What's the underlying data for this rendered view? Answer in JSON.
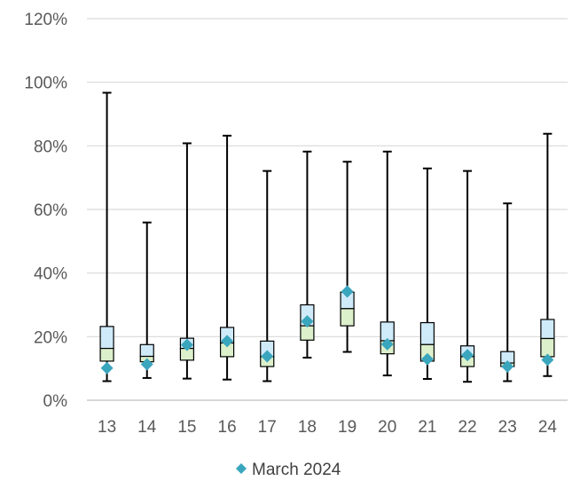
{
  "chart_data": {
    "type": "boxplot",
    "categories": [
      "13",
      "14",
      "15",
      "16",
      "17",
      "18",
      "19",
      "20",
      "21",
      "22",
      "23",
      "24"
    ],
    "ylim": [
      0,
      120
    ],
    "yticks": [
      "0%",
      "20%",
      "40%",
      "60%",
      "80%",
      "100%",
      "120%"
    ],
    "grid": true,
    "boxes": [
      {
        "min": 6.0,
        "q1": 12.3,
        "median": 16.3,
        "q3": 23.2,
        "max": 96.7
      },
      {
        "min": 7.0,
        "q1": 12.1,
        "median": 13.8,
        "q3": 17.5,
        "max": 55.9
      },
      {
        "min": 6.8,
        "q1": 12.6,
        "median": 16.3,
        "q3": 19.5,
        "max": 80.8
      },
      {
        "min": 6.5,
        "q1": 13.7,
        "median": 18.0,
        "q3": 22.9,
        "max": 83.2
      },
      {
        "min": 6.0,
        "q1": 10.6,
        "median": 13.7,
        "q3": 18.6,
        "max": 72.1
      },
      {
        "min": 13.4,
        "q1": 18.9,
        "median": 23.4,
        "q3": 30.0,
        "max": 78.2
      },
      {
        "min": 15.2,
        "q1": 23.4,
        "median": 28.8,
        "q3": 34.0,
        "max": 75.0
      },
      {
        "min": 7.8,
        "q1": 14.6,
        "median": 18.7,
        "q3": 24.6,
        "max": 78.2
      },
      {
        "min": 6.7,
        "q1": 12.3,
        "median": 17.5,
        "q3": 24.4,
        "max": 72.9
      },
      {
        "min": 5.8,
        "q1": 10.6,
        "median": 13.7,
        "q3": 17.1,
        "max": 72.1
      },
      {
        "min": 6.0,
        "q1": 10.6,
        "median": 11.7,
        "q3": 15.3,
        "max": 61.9
      },
      {
        "min": 7.6,
        "q1": 13.7,
        "median": 19.4,
        "q3": 25.4,
        "max": 83.8
      }
    ],
    "series": [
      {
        "name": "March 2024",
        "values": [
          10.1,
          11.3,
          17.4,
          18.6,
          13.8,
          24.8,
          34.2,
          17.6,
          12.9,
          14.2,
          10.6,
          12.7
        ]
      }
    ],
    "legend_position": "bottom",
    "colors": {
      "upper_box": "#cfeaf9",
      "lower_box": "#dcf0cb",
      "box_stroke": "#000000",
      "marker": "#3aa6be",
      "grid": "#d9d9d9",
      "axis": "#bfbfbf"
    }
  }
}
